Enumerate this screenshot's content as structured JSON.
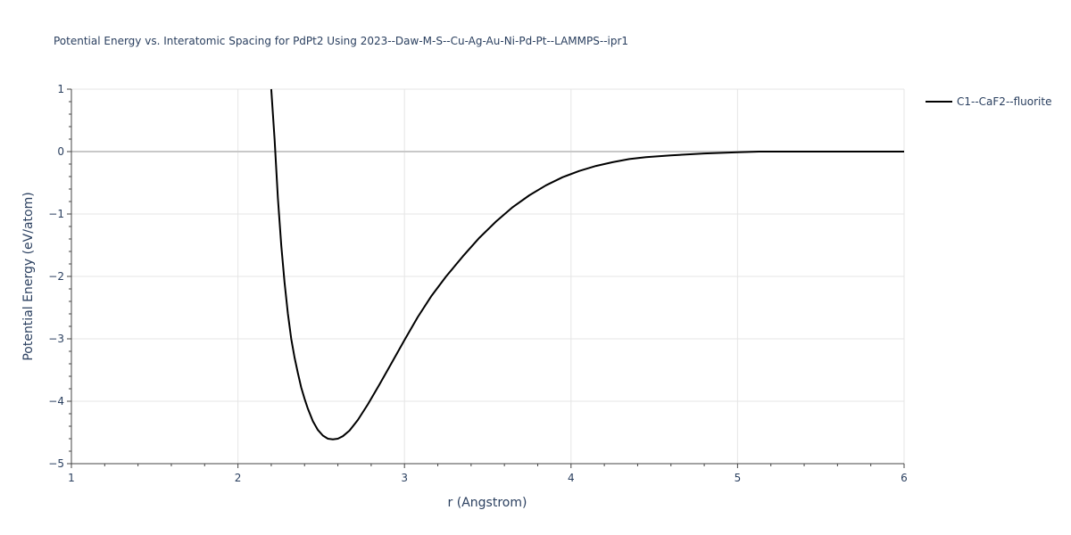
{
  "chart_data": {
    "type": "line",
    "title": "Potential Energy vs. Interatomic Spacing for PdPt2 Using 2023--Daw-M-S--Cu-Ag-Au-Ni-Pd-Pt--LAMMPS--ipr1",
    "xlabel": "r (Angstrom)",
    "ylabel": "Potential Energy (eV/atom)",
    "xlim": [
      1,
      6
    ],
    "ylim": [
      -5,
      1
    ],
    "x_ticks": [
      "1",
      "2",
      "3",
      "4",
      "5",
      "6"
    ],
    "y_ticks": [
      "1",
      "0",
      "−1",
      "−2",
      "−3",
      "−4",
      "−5"
    ],
    "grid": true,
    "legend_position": "top-right",
    "colors": {
      "series": "#000000",
      "grid": "#e5e5e5",
      "zeroline": "#c8c8c8",
      "text": "#2a3f5f"
    },
    "series": [
      {
        "name": "C1--CaF2--fluorite",
        "x": [
          2.2,
          2.22,
          2.24,
          2.26,
          2.28,
          2.3,
          2.32,
          2.34,
          2.36,
          2.38,
          2.4,
          2.42,
          2.45,
          2.48,
          2.51,
          2.54,
          2.57,
          2.6,
          2.63,
          2.67,
          2.72,
          2.78,
          2.85,
          2.92,
          3.0,
          3.08,
          3.16,
          3.25,
          3.35,
          3.45,
          3.55,
          3.65,
          3.75,
          3.85,
          3.95,
          4.05,
          4.15,
          4.25,
          4.35,
          4.45,
          4.6,
          4.8,
          5.0,
          5.13,
          5.3,
          5.5,
          5.75,
          6.0
        ],
        "y": [
          1.0,
          0.2,
          -0.75,
          -1.5,
          -2.1,
          -2.6,
          -3.0,
          -3.3,
          -3.55,
          -3.78,
          -3.96,
          -4.12,
          -4.32,
          -4.46,
          -4.55,
          -4.6,
          -4.61,
          -4.6,
          -4.56,
          -4.47,
          -4.3,
          -4.05,
          -3.73,
          -3.4,
          -3.02,
          -2.65,
          -2.32,
          -2.0,
          -1.68,
          -1.38,
          -1.12,
          -0.89,
          -0.7,
          -0.54,
          -0.41,
          -0.31,
          -0.23,
          -0.17,
          -0.12,
          -0.09,
          -0.06,
          -0.03,
          -0.01,
          0.0,
          0.0,
          0.0,
          0.0,
          0.0
        ]
      }
    ]
  }
}
